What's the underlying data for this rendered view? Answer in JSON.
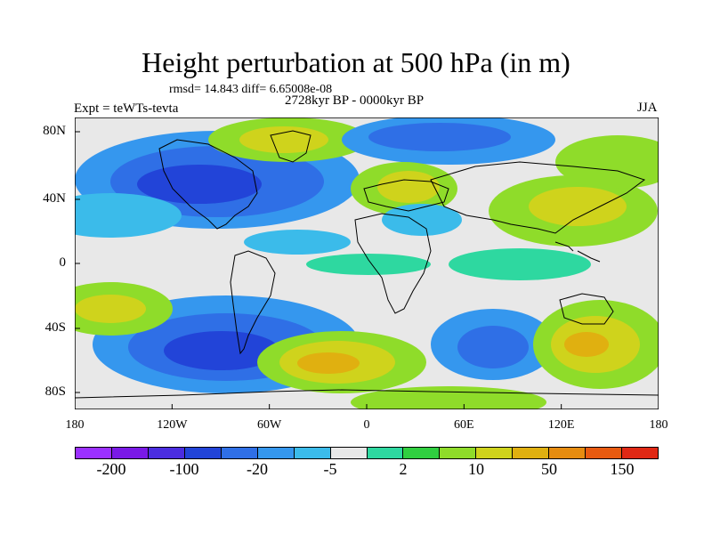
{
  "header": {
    "title": "Height perturbation at 500 hPa (in m)",
    "stats": "rmsd= 14.843 diff= 6.65008e-08",
    "period": "2728kyr BP - 0000kyr BP",
    "experiment": "Expt = teWTs-tevta",
    "season": "JJA"
  },
  "axes": {
    "y_ticks": [
      "80N",
      "40N",
      "0",
      "40S",
      "80S"
    ],
    "x_ticks": [
      "180",
      "120W",
      "60W",
      "0",
      "60E",
      "120E",
      "180"
    ]
  },
  "colorbar": {
    "colors": [
      "#9b30ff",
      "#7a19e6",
      "#4b2de0",
      "#2244d8",
      "#2f6fe6",
      "#3597ee",
      "#3bbbea",
      "#e8e8e8",
      "#2ed8a0",
      "#30cf40",
      "#8fdc2a",
      "#cfd31c",
      "#e0b010",
      "#e68c10",
      "#e85a10",
      "#e02814"
    ],
    "labels": [
      "-200",
      "-100",
      "-20",
      "-5",
      "2",
      "10",
      "50",
      "150"
    ]
  },
  "map_data": {
    "type": "filled-contour",
    "variable": "500 hPa height perturbation",
    "units": "m",
    "lon_range": [
      -180,
      180
    ],
    "lat_range": [
      -90,
      90
    ],
    "features": [
      {
        "name": "north-atlantic-low",
        "lon": -95,
        "lat": 45,
        "value": -20
      },
      {
        "name": "greenland-high",
        "lon": -40,
        "lat": 75,
        "value": 10
      },
      {
        "name": "arctic-siberia-low",
        "lon": 40,
        "lat": 75,
        "value": -20
      },
      {
        "name": "europe-high",
        "lon": 20,
        "lat": 45,
        "value": 10
      },
      {
        "name": "mediterranean-low",
        "lon": 20,
        "lat": 30,
        "value": -5
      },
      {
        "name": "north-pacific-high",
        "lon": 170,
        "lat": 60,
        "value": 10
      },
      {
        "name": "asia-high",
        "lon": 100,
        "lat": 40,
        "value": 10
      },
      {
        "name": "tropical-pacific-low",
        "lon": -150,
        "lat": 20,
        "value": -5
      },
      {
        "name": "south-pacific-low",
        "lon": -120,
        "lat": -55,
        "value": -20
      },
      {
        "name": "south-atlantic-high",
        "lon": -30,
        "lat": -60,
        "value": 50
      },
      {
        "name": "south-pacific-high",
        "lon": -170,
        "lat": -40,
        "value": 10
      },
      {
        "name": "southern-indian-low",
        "lon": 60,
        "lat": -50,
        "value": -20
      },
      {
        "name": "australia-high",
        "lon": 140,
        "lat": -50,
        "value": 50
      },
      {
        "name": "tropical-atlantic-high",
        "lon": -25,
        "lat": 0,
        "value": 2
      }
    ]
  }
}
